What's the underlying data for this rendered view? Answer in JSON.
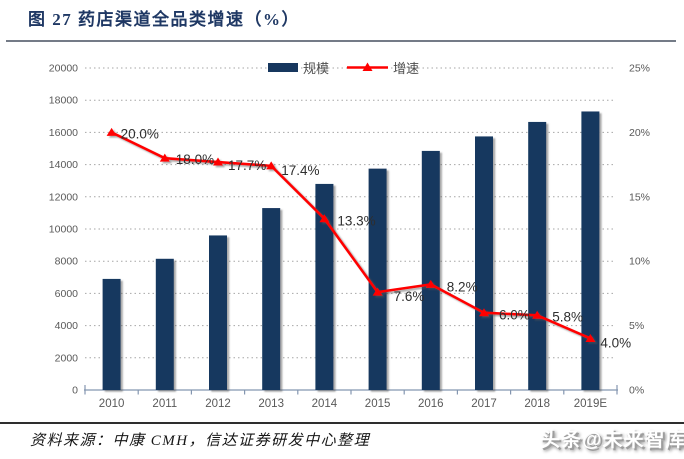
{
  "figure": {
    "title": "图 27 药店渠道全品类增速（%）",
    "source_label": "资料来源：",
    "source_text": "中康 CMH，信达证券研发中心整理",
    "watermark": "头条@未来智库"
  },
  "colors": {
    "bar": "#17375E",
    "line": "#FF0000",
    "title_text": "#1F3864",
    "axis_text": "#595959",
    "point_label_text": "#2E2E2E",
    "gridline": "#A6A6A6",
    "axis_line": "#8496B0"
  },
  "chart_data": {
    "type": "bar",
    "combo": "bar+line",
    "title": "药店渠道全品类增速（%）",
    "categories": [
      "2010",
      "2011",
      "2012",
      "2013",
      "2014",
      "2015",
      "2016",
      "2017",
      "2018",
      "2019E"
    ],
    "series": [
      {
        "name": "规模",
        "type": "bar",
        "y_axis": "left",
        "values": [
          6900,
          8150,
          9600,
          11300,
          12800,
          13750,
          14850,
          15750,
          16650,
          17300
        ]
      },
      {
        "name": "增速",
        "type": "line",
        "y_axis": "right",
        "values": [
          20.0,
          18.0,
          17.7,
          17.4,
          13.3,
          7.6,
          8.2,
          6.0,
          5.8,
          4.0
        ],
        "point_labels": [
          "20.0%",
          "18.0%",
          "17.7%",
          "17.4%",
          "13.3%",
          "7.6%",
          "8.2%",
          "6.0%",
          "5.8%",
          "4.0%"
        ]
      }
    ],
    "left_axis": {
      "min": 0,
      "max": 20000,
      "step": 2000,
      "ticks": [
        "0",
        "2000",
        "4000",
        "6000",
        "8000",
        "10000",
        "12000",
        "14000",
        "16000",
        "18000",
        "20000"
      ]
    },
    "right_axis": {
      "min": 0,
      "max": 25,
      "step": 5,
      "ticks": [
        "0%",
        "5%",
        "10%",
        "15%",
        "20%",
        "25%"
      ]
    },
    "legend": [
      "规模",
      "增速"
    ],
    "legend_position": "top-center",
    "grid": "horizontal-dotted"
  }
}
